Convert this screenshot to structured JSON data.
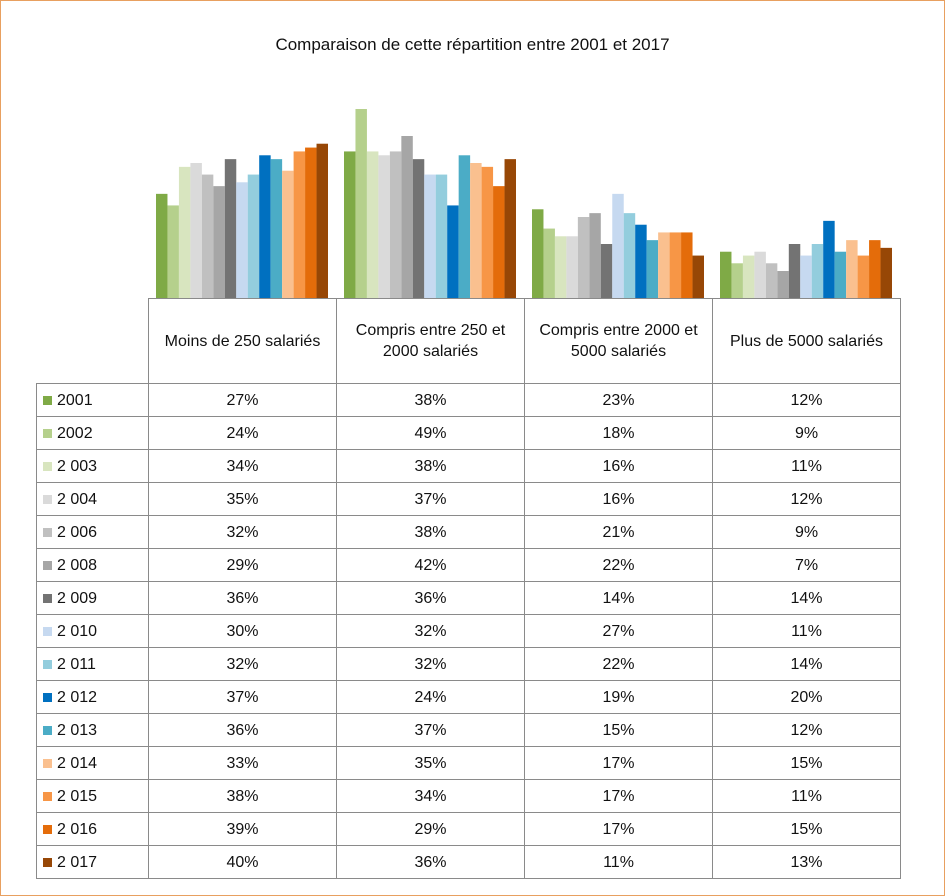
{
  "chart_data": {
    "type": "bar",
    "title": "Comparaison de cette répartition entre 2001 et 2017",
    "categories": [
      "Moins de 250 salariés",
      "Compris entre 250 et 2000 salariés",
      "Compris entre 2000 et 5000 salariés",
      "Plus de 5000 salariés"
    ],
    "series": [
      {
        "name": "2001",
        "color": "#7faa46",
        "values": [
          27,
          38,
          23,
          12
        ],
        "value_labels": [
          "27%",
          "38%",
          "23%",
          "12%"
        ]
      },
      {
        "name": "2002",
        "color": "#b5d08c",
        "values": [
          24,
          49,
          18,
          9
        ],
        "value_labels": [
          "24%",
          "49%",
          "18%",
          "9%"
        ]
      },
      {
        "name": "2 003",
        "color": "#d8e5bf",
        "values": [
          34,
          38,
          16,
          11
        ],
        "value_labels": [
          "34%",
          "38%",
          "16%",
          "11%"
        ]
      },
      {
        "name": "2 004",
        "color": "#dadada",
        "values": [
          35,
          37,
          16,
          12
        ],
        "value_labels": [
          "35%",
          "37%",
          "16%",
          "12%"
        ]
      },
      {
        "name": "2 006",
        "color": "#c0c0c0",
        "values": [
          32,
          38,
          21,
          9
        ],
        "value_labels": [
          "32%",
          "38%",
          "21%",
          "9%"
        ]
      },
      {
        "name": "2 008",
        "color": "#a6a6a6",
        "values": [
          29,
          42,
          22,
          7
        ],
        "value_labels": [
          "29%",
          "42%",
          "22%",
          "7%"
        ]
      },
      {
        "name": "2 009",
        "color": "#737373",
        "values": [
          36,
          36,
          14,
          14
        ],
        "value_labels": [
          "36%",
          "36%",
          "14%",
          "14%"
        ]
      },
      {
        "name": "2 010",
        "color": "#c6d9f0",
        "values": [
          30,
          32,
          27,
          11
        ],
        "value_labels": [
          "30%",
          "32%",
          "27%",
          "11%"
        ]
      },
      {
        "name": "2 011",
        "color": "#93cddd",
        "values": [
          32,
          32,
          22,
          14
        ],
        "value_labels": [
          "32%",
          "32%",
          "22%",
          "14%"
        ]
      },
      {
        "name": "2 012",
        "color": "#0070c0",
        "values": [
          37,
          24,
          19,
          20
        ],
        "value_labels": [
          "37%",
          "24%",
          "19%",
          "20%"
        ]
      },
      {
        "name": "2 013",
        "color": "#4bacc6",
        "values": [
          36,
          37,
          15,
          12
        ],
        "value_labels": [
          "36%",
          "37%",
          "15%",
          "12%"
        ]
      },
      {
        "name": "2 014",
        "color": "#fac08f",
        "values": [
          33,
          35,
          17,
          15
        ],
        "value_labels": [
          "33%",
          "35%",
          "17%",
          "15%"
        ]
      },
      {
        "name": "2 015",
        "color": "#f79646",
        "values": [
          38,
          34,
          17,
          11
        ],
        "value_labels": [
          "38%",
          "34%",
          "17%",
          "11%"
        ]
      },
      {
        "name": "2 016",
        "color": "#e46c0a",
        "values": [
          39,
          29,
          17,
          15
        ],
        "value_labels": [
          "39%",
          "29%",
          "17%",
          "15%"
        ]
      },
      {
        "name": "2 017",
        "color": "#974706",
        "values": [
          40,
          36,
          11,
          13
        ],
        "value_labels": [
          "40%",
          "36%",
          "11%",
          "13%"
        ]
      }
    ]
  }
}
